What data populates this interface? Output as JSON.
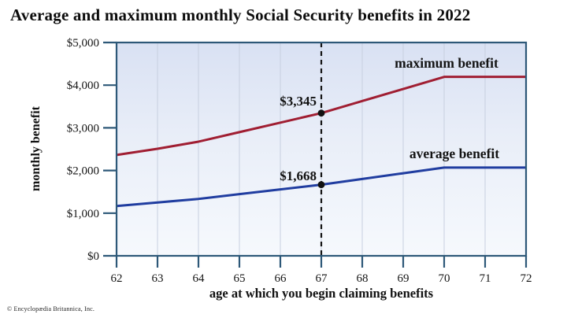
{
  "title": "Average and maximum monthly Social Security benefits in 2022",
  "attribution": "© Encyclopædia Britannica, Inc.",
  "colors": {
    "max_line": "#a01e32",
    "avg_line": "#203da0",
    "axis": "#2d5878",
    "gridline": "#c7cfdf",
    "reference_line": "#141414",
    "marker": "#111111",
    "plot_bg_top": "#d9e1f3",
    "plot_bg_mid": "#e9eef8",
    "plot_bg_bottom": "#f6f9fd"
  },
  "chart_data": {
    "type": "line",
    "title": "Average and maximum monthly Social Security benefits in 2022",
    "xlabel": "age at which you begin claiming benefits",
    "ylabel": "monthly benefit",
    "xlim": [
      62,
      72
    ],
    "ylim": [
      0,
      5000
    ],
    "grid": "vertical-only",
    "legend_position": "inline-labels-above-lines",
    "x_ticks": [
      62,
      63,
      64,
      65,
      66,
      67,
      68,
      69,
      70,
      71,
      72
    ],
    "y_ticks": [
      {
        "value": 5000,
        "label": "$5,000"
      },
      {
        "value": 4000,
        "label": "$4,000"
      },
      {
        "value": 3000,
        "label": "$3,000"
      },
      {
        "value": 2000,
        "label": "$2,000"
      },
      {
        "value": 1000,
        "label": "$1,000"
      },
      {
        "value": 0,
        "label": "$0"
      }
    ],
    "x": [
      62,
      63,
      64,
      65,
      66,
      67,
      68,
      69,
      70,
      71,
      72
    ],
    "series": [
      {
        "name": "maximum benefit",
        "values": [
          2364,
          2509,
          2676,
          2899,
          3122,
          3345,
          3628,
          3911,
          4194,
          4194,
          4194
        ]
      },
      {
        "name": "average benefit",
        "values": [
          1168,
          1251,
          1334,
          1446,
          1557,
          1668,
          1801,
          1935,
          2068,
          2068,
          2068
        ]
      }
    ],
    "reference_line_x": 67,
    "annotations": [
      {
        "series": "maximum benefit",
        "x": 67,
        "value": 3345,
        "label": "$3,345"
      },
      {
        "series": "average benefit",
        "x": 67,
        "value": 1668,
        "label": "$1,668"
      }
    ]
  }
}
